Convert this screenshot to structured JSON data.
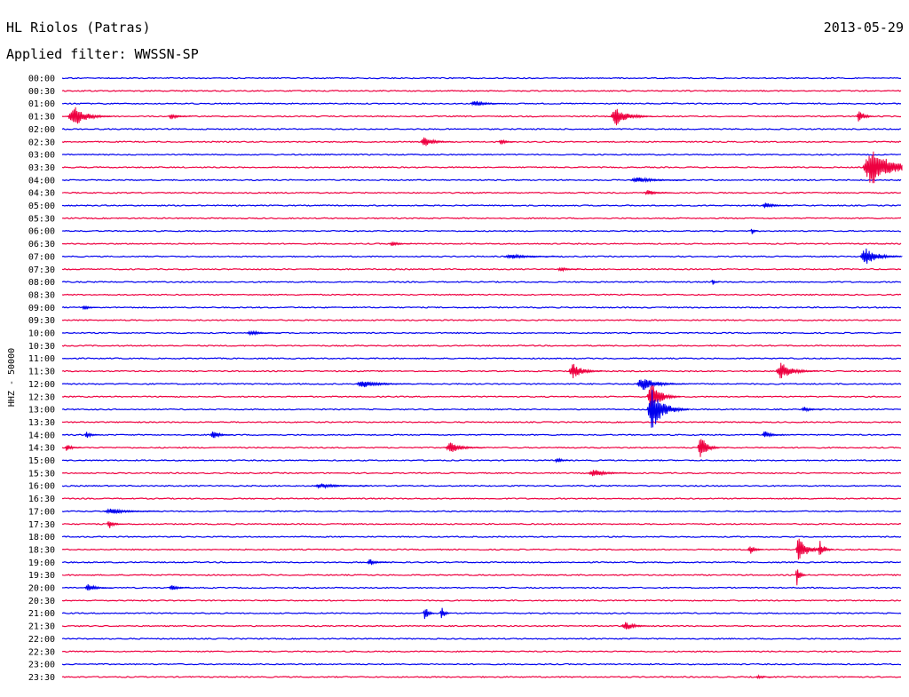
{
  "header": {
    "station": "HL Riolos (Patras)",
    "date": "2013-05-29",
    "filter_line": "Applied filter: WWSSN-SP"
  },
  "chart_data": {
    "type": "line",
    "title": "HL Riolos (Patras)",
    "subtitle": "Applied filter: WWSSN-SP",
    "date": "2013-05-29",
    "ylabel": "HHZ - 50000",
    "xlabel": "",
    "grid": false,
    "legend": "none",
    "colors": {
      "even": "#0000ee",
      "odd": "#ee0040",
      "text": "#000000"
    },
    "row_labels": [
      "00:00",
      "00:30",
      "01:00",
      "01:30",
      "02:00",
      "02:30",
      "03:00",
      "03:30",
      "04:00",
      "04:30",
      "05:00",
      "05:30",
      "06:00",
      "06:30",
      "07:00",
      "07:30",
      "08:00",
      "08:30",
      "09:00",
      "09:30",
      "10:00",
      "10:30",
      "11:00",
      "11:30",
      "12:00",
      "12:30",
      "13:00",
      "13:30",
      "14:00",
      "14:30",
      "15:00",
      "15:30",
      "16:00",
      "16:30",
      "17:00",
      "17:30",
      "18:00",
      "18:30",
      "19:00",
      "19:30",
      "20:00",
      "20:30",
      "21:00",
      "21:30",
      "22:00",
      "22:30",
      "23:00",
      "23:30"
    ],
    "x_range_minutes": [
      0,
      30
    ],
    "events": [
      {
        "row": 2,
        "minute": 14.6,
        "amp": 0.6,
        "dur": 1.2
      },
      {
        "row": 3,
        "minute": 0.2,
        "amp": 1.8,
        "dur": 1.6
      },
      {
        "row": 3,
        "minute": 3.8,
        "amp": 0.5,
        "dur": 0.8
      },
      {
        "row": 3,
        "minute": 19.6,
        "amp": 1.6,
        "dur": 1.5
      },
      {
        "row": 3,
        "minute": 28.4,
        "amp": 1.3,
        "dur": 0.6
      },
      {
        "row": 5,
        "minute": 12.8,
        "amp": 0.8,
        "dur": 1.2
      },
      {
        "row": 5,
        "minute": 15.6,
        "amp": 0.5,
        "dur": 0.6
      },
      {
        "row": 7,
        "minute": 28.6,
        "amp": 3.2,
        "dur": 2.5
      },
      {
        "row": 8,
        "minute": 20.3,
        "amp": 0.5,
        "dur": 2.0
      },
      {
        "row": 9,
        "minute": 20.8,
        "amp": 0.5,
        "dur": 1.0
      },
      {
        "row": 10,
        "minute": 25.0,
        "amp": 0.5,
        "dur": 1.0
      },
      {
        "row": 12,
        "minute": 24.6,
        "amp": 0.6,
        "dur": 0.3
      },
      {
        "row": 13,
        "minute": 11.7,
        "amp": 0.4,
        "dur": 0.8
      },
      {
        "row": 14,
        "minute": 28.5,
        "amp": 1.4,
        "dur": 1.6
      },
      {
        "row": 14,
        "minute": 15.8,
        "amp": 0.4,
        "dur": 2.0
      },
      {
        "row": 15,
        "minute": 17.7,
        "amp": 0.4,
        "dur": 0.8
      },
      {
        "row": 16,
        "minute": 23.2,
        "amp": 0.5,
        "dur": 0.3
      },
      {
        "row": 18,
        "minute": 0.7,
        "amp": 0.5,
        "dur": 0.6
      },
      {
        "row": 20,
        "minute": 6.6,
        "amp": 0.4,
        "dur": 1.2
      },
      {
        "row": 23,
        "minute": 18.1,
        "amp": 1.3,
        "dur": 1.2
      },
      {
        "row": 23,
        "minute": 25.5,
        "amp": 1.4,
        "dur": 1.5
      },
      {
        "row": 24,
        "minute": 10.5,
        "amp": 0.6,
        "dur": 2.0
      },
      {
        "row": 24,
        "minute": 20.5,
        "amp": 1.2,
        "dur": 1.8
      },
      {
        "row": 25,
        "minute": 20.9,
        "amp": 2.4,
        "dur": 1.2
      },
      {
        "row": 26,
        "minute": 20.9,
        "amp": 3.4,
        "dur": 1.5
      },
      {
        "row": 26,
        "minute": 26.4,
        "amp": 0.5,
        "dur": 0.8
      },
      {
        "row": 28,
        "minute": 0.8,
        "amp": 0.6,
        "dur": 0.6
      },
      {
        "row": 28,
        "minute": 5.3,
        "amp": 0.7,
        "dur": 0.8
      },
      {
        "row": 28,
        "minute": 25.0,
        "amp": 0.7,
        "dur": 0.8
      },
      {
        "row": 29,
        "minute": 0.1,
        "amp": 0.7,
        "dur": 0.6
      },
      {
        "row": 29,
        "minute": 13.7,
        "amp": 0.9,
        "dur": 1.4
      },
      {
        "row": 29,
        "minute": 22.7,
        "amp": 2.2,
        "dur": 0.8
      },
      {
        "row": 30,
        "minute": 17.6,
        "amp": 0.5,
        "dur": 0.6
      },
      {
        "row": 31,
        "minute": 18.8,
        "amp": 0.6,
        "dur": 1.6
      },
      {
        "row": 32,
        "minute": 9.0,
        "amp": 0.4,
        "dur": 2.0
      },
      {
        "row": 34,
        "minute": 1.5,
        "amp": 0.5,
        "dur": 2.0
      },
      {
        "row": 35,
        "minute": 1.6,
        "amp": 0.8,
        "dur": 0.6
      },
      {
        "row": 37,
        "minute": 24.5,
        "amp": 0.8,
        "dur": 0.6
      },
      {
        "row": 37,
        "minute": 26.2,
        "amp": 2.3,
        "dur": 1.0
      },
      {
        "row": 37,
        "minute": 27.0,
        "amp": 1.5,
        "dur": 0.6
      },
      {
        "row": 38,
        "minute": 10.9,
        "amp": 0.6,
        "dur": 0.8
      },
      {
        "row": 39,
        "minute": 26.2,
        "amp": 1.8,
        "dur": 0.4
      },
      {
        "row": 40,
        "minute": 0.8,
        "amp": 0.6,
        "dur": 1.0
      },
      {
        "row": 40,
        "minute": 3.8,
        "amp": 0.5,
        "dur": 0.8
      },
      {
        "row": 42,
        "minute": 12.9,
        "amp": 1.5,
        "dur": 0.4
      },
      {
        "row": 42,
        "minute": 13.5,
        "amp": 1.2,
        "dur": 0.4
      },
      {
        "row": 43,
        "minute": 20.0,
        "amp": 0.8,
        "dur": 1.0
      },
      {
        "row": 47,
        "minute": 24.8,
        "amp": 0.3,
        "dur": 0.6
      }
    ]
  }
}
